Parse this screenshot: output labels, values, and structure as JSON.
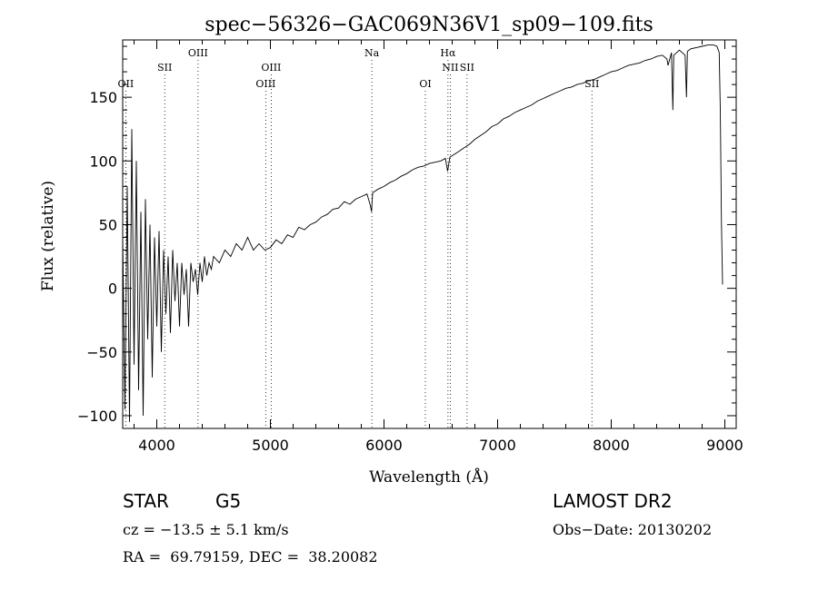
{
  "chart_data": {
    "type": "line",
    "title": "spec−56326−GAC069N36V1_sp09−109.fits",
    "xlabel": "Wavelength (Å)",
    "ylabel": "Flux (relative)",
    "xlim": [
      3700,
      9100
    ],
    "ylim": [
      -110,
      195
    ],
    "x_ticks": [
      4000,
      5000,
      6000,
      7000,
      8000,
      9000
    ],
    "y_ticks": [
      -100,
      -50,
      0,
      50,
      100,
      150
    ],
    "grid": false,
    "line_color": "#000000",
    "series": [
      {
        "points": [
          [
            3700,
            40
          ],
          [
            3720,
            -95
          ],
          [
            3740,
            80
          ],
          [
            3760,
            -105
          ],
          [
            3780,
            125
          ],
          [
            3800,
            -60
          ],
          [
            3820,
            100
          ],
          [
            3840,
            -80
          ],
          [
            3860,
            60
          ],
          [
            3880,
            -100
          ],
          [
            3900,
            70
          ],
          [
            3920,
            -40
          ],
          [
            3940,
            50
          ],
          [
            3960,
            -70
          ],
          [
            3980,
            40
          ],
          [
            4000,
            -30
          ],
          [
            4020,
            45
          ],
          [
            4040,
            -50
          ],
          [
            4060,
            30
          ],
          [
            4080,
            -20
          ],
          [
            4100,
            25
          ],
          [
            4120,
            -35
          ],
          [
            4140,
            30
          ],
          [
            4160,
            -10
          ],
          [
            4180,
            20
          ],
          [
            4200,
            -30
          ],
          [
            4220,
            20
          ],
          [
            4240,
            -5
          ],
          [
            4260,
            15
          ],
          [
            4280,
            -30
          ],
          [
            4300,
            20
          ],
          [
            4320,
            5
          ],
          [
            4340,
            15
          ],
          [
            4360,
            -5
          ],
          [
            4380,
            20
          ],
          [
            4400,
            5
          ],
          [
            4420,
            25
          ],
          [
            4440,
            10
          ],
          [
            4460,
            20
          ],
          [
            4480,
            15
          ],
          [
            4500,
            25
          ],
          [
            4550,
            20
          ],
          [
            4600,
            30
          ],
          [
            4650,
            25
          ],
          [
            4700,
            35
          ],
          [
            4750,
            30
          ],
          [
            4800,
            40
          ],
          [
            4850,
            30
          ],
          [
            4900,
            35
          ],
          [
            4950,
            30
          ],
          [
            5000,
            32
          ],
          [
            5050,
            38
          ],
          [
            5100,
            35
          ],
          [
            5150,
            42
          ],
          [
            5200,
            40
          ],
          [
            5250,
            48
          ],
          [
            5300,
            46
          ],
          [
            5350,
            50
          ],
          [
            5400,
            52
          ],
          [
            5450,
            56
          ],
          [
            5500,
            58
          ],
          [
            5550,
            62
          ],
          [
            5600,
            63
          ],
          [
            5650,
            68
          ],
          [
            5700,
            66
          ],
          [
            5750,
            70
          ],
          [
            5800,
            72
          ],
          [
            5850,
            74
          ],
          [
            5880,
            65
          ],
          [
            5890,
            60
          ],
          [
            5900,
            75
          ],
          [
            5950,
            78
          ],
          [
            6000,
            80
          ],
          [
            6050,
            83
          ],
          [
            6100,
            85
          ],
          [
            6150,
            88
          ],
          [
            6200,
            90
          ],
          [
            6250,
            93
          ],
          [
            6300,
            95
          ],
          [
            6350,
            96
          ],
          [
            6400,
            98
          ],
          [
            6450,
            99
          ],
          [
            6500,
            100
          ],
          [
            6540,
            102
          ],
          [
            6560,
            92
          ],
          [
            6580,
            103
          ],
          [
            6650,
            107
          ],
          [
            6700,
            110
          ],
          [
            6750,
            113
          ],
          [
            6800,
            117
          ],
          [
            6850,
            120
          ],
          [
            6900,
            123
          ],
          [
            6950,
            127
          ],
          [
            7000,
            129
          ],
          [
            7050,
            133
          ],
          [
            7100,
            135
          ],
          [
            7150,
            138
          ],
          [
            7200,
            140
          ],
          [
            7250,
            142
          ],
          [
            7300,
            144
          ],
          [
            7350,
            147
          ],
          [
            7400,
            149
          ],
          [
            7450,
            151
          ],
          [
            7500,
            153
          ],
          [
            7550,
            155
          ],
          [
            7600,
            157
          ],
          [
            7650,
            158
          ],
          [
            7700,
            160
          ],
          [
            7750,
            161
          ],
          [
            7800,
            163
          ],
          [
            7850,
            164
          ],
          [
            7900,
            166
          ],
          [
            7950,
            168
          ],
          [
            8000,
            170
          ],
          [
            8050,
            171
          ],
          [
            8100,
            173
          ],
          [
            8150,
            175
          ],
          [
            8200,
            176
          ],
          [
            8250,
            177
          ],
          [
            8300,
            179
          ],
          [
            8350,
            180
          ],
          [
            8400,
            182
          ],
          [
            8450,
            183
          ],
          [
            8490,
            180
          ],
          [
            8500,
            175
          ],
          [
            8530,
            185
          ],
          [
            8542,
            140
          ],
          [
            8550,
            183
          ],
          [
            8600,
            187
          ],
          [
            8650,
            183
          ],
          [
            8662,
            150
          ],
          [
            8670,
            186
          ],
          [
            8700,
            188
          ],
          [
            8750,
            189
          ],
          [
            8800,
            190
          ],
          [
            8850,
            191
          ],
          [
            8900,
            191
          ],
          [
            8930,
            190
          ],
          [
            8950,
            185
          ],
          [
            8960,
            140
          ],
          [
            8970,
            50
          ],
          [
            8980,
            3
          ]
        ]
      }
    ],
    "emission_lines": [
      {
        "label": "OII",
        "x": 3727,
        "row": 3
      },
      {
        "label": "SII",
        "x": 4070,
        "row": 2
      },
      {
        "label": "OIII",
        "x": 4363,
        "row": 1
      },
      {
        "label": "OIII",
        "x": 4959,
        "row": 3
      },
      {
        "label": "OIII",
        "x": 5007,
        "row": 2
      },
      {
        "label": "Na",
        "x": 5893,
        "row": 1
      },
      {
        "label": "OI",
        "x": 6364,
        "row": 3
      },
      {
        "label": "Hα",
        "x": 6563,
        "row": 1
      },
      {
        "label": "NII",
        "x": 6583,
        "row": 2
      },
      {
        "label": "SII",
        "x": 6731,
        "row": 2
      },
      {
        "label": "SII",
        "x": 7830,
        "row": 3
      }
    ]
  },
  "info": {
    "object_class": "STAR",
    "subclass": "G5",
    "survey": "LAMOST DR2",
    "redshift_text": "cz = −13.5 ± 5.1 km/s",
    "obs_date_text": "Obs−Date: 20130202",
    "coords_text": "RA =  69.79159, DEC =  38.20082"
  }
}
